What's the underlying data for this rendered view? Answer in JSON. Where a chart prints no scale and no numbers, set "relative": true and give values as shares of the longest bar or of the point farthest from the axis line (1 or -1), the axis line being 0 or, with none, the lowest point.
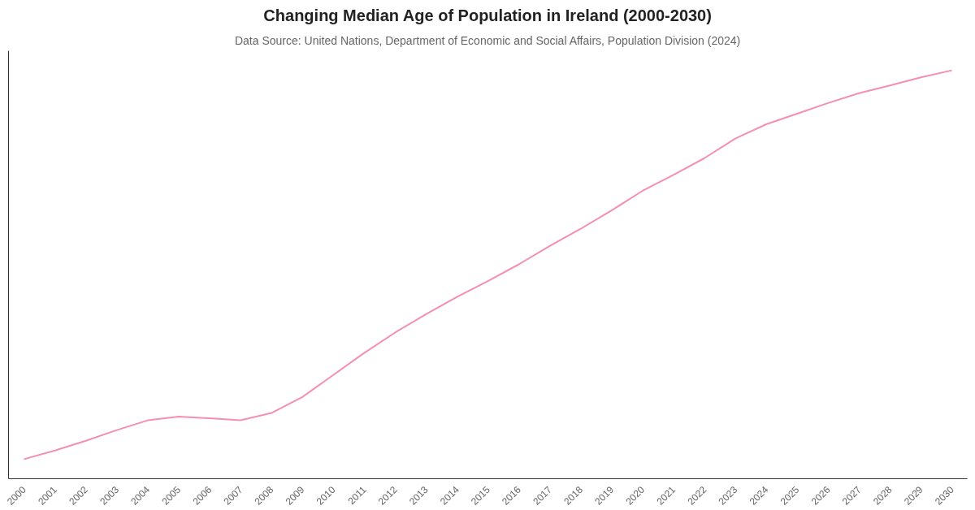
{
  "chart_data": {
    "type": "line",
    "title": "Changing Median Age of Population in Ireland (2000-2030)",
    "subtitle": "Data Source: United Nations, Department of Economic and Social Affairs, Population Division (2024)",
    "categories": [
      "2000",
      "2001",
      "2002",
      "2003",
      "2004",
      "2005",
      "2006",
      "2007",
      "2008",
      "2009",
      "2010",
      "2011",
      "2012",
      "2013",
      "2014",
      "2015",
      "2016",
      "2017",
      "2018",
      "2019",
      "2020",
      "2021",
      "2022",
      "2023",
      "2024",
      "2025",
      "2026",
      "2027",
      "2028",
      "2029",
      "2030"
    ],
    "relative": true,
    "series": [
      {
        "color": "#f48fb1",
        "values": [
          0.048,
          0.069,
          0.093,
          0.119,
          0.143,
          0.152,
          0.148,
          0.143,
          0.161,
          0.2,
          0.254,
          0.308,
          0.358,
          0.403,
          0.445,
          0.484,
          0.525,
          0.57,
          0.612,
          0.657,
          0.705,
          0.744,
          0.785,
          0.833,
          0.868,
          0.894,
          0.92,
          0.944,
          0.963,
          0.983,
          1.0
        ]
      }
    ],
    "line_style": "solid"
  }
}
